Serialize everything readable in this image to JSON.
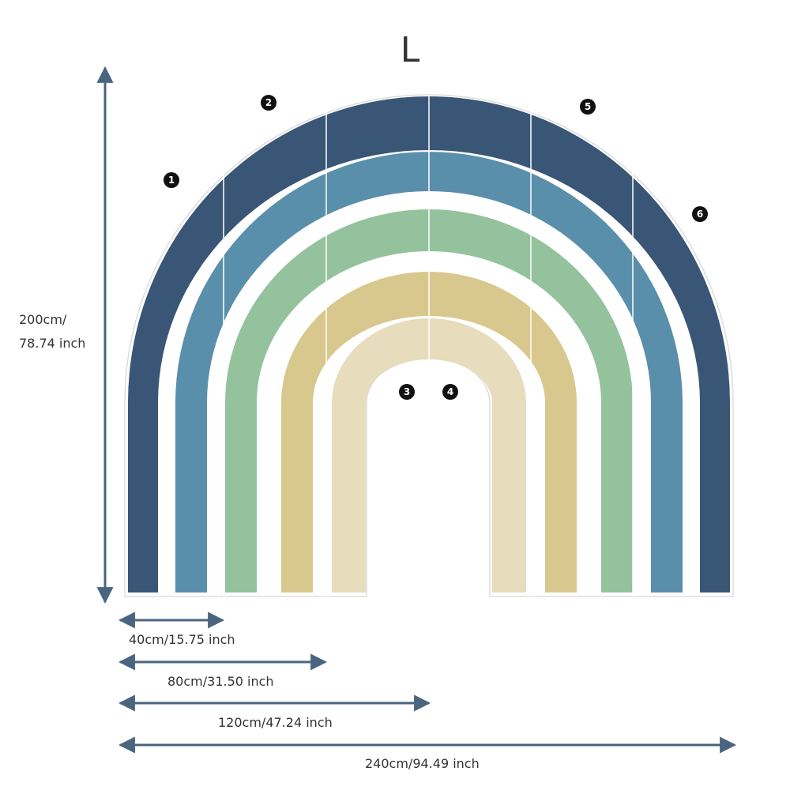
{
  "size_label": "L",
  "height_label": [
    "200cm/",
    "78.74 inch"
  ],
  "width_labels": [
    "40cm/15.75 inch",
    "80cm/31.50 inch",
    "120cm/47.24 inch",
    "240cm/94.49 inch"
  ],
  "panel_numbers": [
    1,
    2,
    3,
    4,
    5,
    6
  ]
}
